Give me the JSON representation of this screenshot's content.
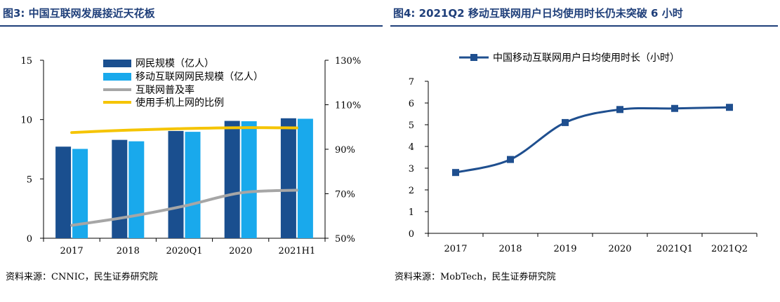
{
  "colors": {
    "title": "#1f3f7a",
    "bar_dark": "#1a4f8f",
    "bar_light": "#19a9ec",
    "grey_line": "#a6a6a6",
    "yellow_line": "#f5c400",
    "usage_line": "#1f4f8f"
  },
  "left": {
    "title": "图3: 中国互联网发展接近天花板",
    "source": "资料来源：CNNIC，民生证券研究院"
  },
  "right": {
    "title": "图4: 2021Q2 移动互联网用户日均使用时长仍未突破 6 小时",
    "source": "资料来源：MobTech，民生证券研究院"
  },
  "chart_data": [
    {
      "type": "bar",
      "categories": [
        "2017",
        "2018",
        "2020Q1",
        "2020",
        "2021H1"
      ],
      "series": [
        {
          "name": "网民规模（亿人）",
          "kind": "bar",
          "axis": "left",
          "values": [
            7.72,
            8.29,
            9.04,
            9.89,
            10.11
          ]
        },
        {
          "name": "移动互联网网民规模（亿人）",
          "kind": "bar",
          "axis": "left",
          "values": [
            7.53,
            8.17,
            8.97,
            9.86,
            10.07
          ]
        },
        {
          "name": "互联网普及率",
          "kind": "line",
          "axis": "right",
          "values": [
            55.8,
            59.6,
            64.5,
            70.4,
            71.6
          ]
        },
        {
          "name": "使用手机上网的比例",
          "kind": "line",
          "axis": "right",
          "values": [
            97.5,
            98.6,
            99.3,
            99.7,
            99.6
          ]
        }
      ],
      "ylim": [
        0,
        15
      ],
      "yticks": [
        "0",
        "5",
        "10",
        "15"
      ],
      "y2lim": [
        50,
        130
      ],
      "y2ticks": [
        "50%",
        "70%",
        "90%",
        "110%",
        "130%"
      ]
    },
    {
      "type": "line",
      "categories": [
        "2017",
        "2018",
        "2019",
        "2020",
        "2021Q1",
        "2021Q2"
      ],
      "series": [
        {
          "name": "中国移动互联网用户日均使用时长（小时）",
          "values": [
            2.8,
            3.4,
            5.1,
            5.7,
            5.75,
            5.8
          ]
        }
      ],
      "ylim": [
        0,
        7
      ],
      "yticks": [
        "0",
        "1",
        "2",
        "3",
        "4",
        "5",
        "6",
        "7"
      ]
    }
  ]
}
